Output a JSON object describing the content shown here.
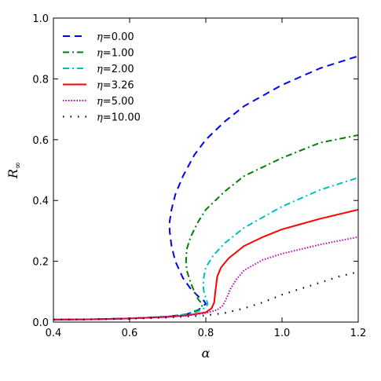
{
  "chart_data": {
    "type": "line",
    "xlabel": "α",
    "ylabel_base": "R",
    "ylabel_sub": "∞",
    "xlim": [
      0.4,
      1.2
    ],
    "ylim": [
      0.0,
      1.0
    ],
    "xticks": [
      0.4,
      0.6,
      0.8,
      1.0,
      1.2
    ],
    "yticks": [
      0.0,
      0.2,
      0.4,
      0.6,
      0.8,
      1.0
    ],
    "xtick_labels": [
      "0.4",
      "0.6",
      "0.8",
      "1.0",
      "1.2"
    ],
    "ytick_labels": [
      "0.0",
      "0.2",
      "0.4",
      "0.6",
      "0.8",
      "1.0"
    ],
    "grid": false,
    "legend_position": "top-left",
    "series": [
      {
        "name": "η=0.00",
        "label_prefix": "η",
        "label_value": "=0.00",
        "color": "#0000ff",
        "dash": "dash",
        "points": [
          [
            0.4,
            0.008
          ],
          [
            0.5,
            0.009
          ],
          [
            0.6,
            0.012
          ],
          [
            0.7,
            0.018
          ],
          [
            0.75,
            0.026
          ],
          [
            0.78,
            0.04
          ],
          [
            0.8,
            0.06
          ],
          [
            0.795,
            0.07
          ],
          [
            0.78,
            0.085
          ],
          [
            0.76,
            0.11
          ],
          [
            0.74,
            0.145
          ],
          [
            0.72,
            0.2
          ],
          [
            0.71,
            0.25
          ],
          [
            0.705,
            0.3
          ],
          [
            0.705,
            0.33
          ],
          [
            0.71,
            0.37
          ],
          [
            0.72,
            0.42
          ],
          [
            0.74,
            0.48
          ],
          [
            0.77,
            0.55
          ],
          [
            0.8,
            0.6
          ],
          [
            0.85,
            0.66
          ],
          [
            0.9,
            0.71
          ],
          [
            1.0,
            0.78
          ],
          [
            1.1,
            0.835
          ],
          [
            1.2,
            0.875
          ]
        ]
      },
      {
        "name": "η=1.00",
        "label_prefix": "η",
        "label_value": "=1.00",
        "color": "#008000",
        "dash": "dashdot",
        "points": [
          [
            0.4,
            0.008
          ],
          [
            0.5,
            0.009
          ],
          [
            0.6,
            0.012
          ],
          [
            0.7,
            0.018
          ],
          [
            0.75,
            0.026
          ],
          [
            0.78,
            0.04
          ],
          [
            0.79,
            0.05
          ],
          [
            0.79,
            0.06
          ],
          [
            0.78,
            0.075
          ],
          [
            0.77,
            0.1
          ],
          [
            0.76,
            0.13
          ],
          [
            0.75,
            0.17
          ],
          [
            0.748,
            0.2
          ],
          [
            0.75,
            0.24
          ],
          [
            0.76,
            0.28
          ],
          [
            0.78,
            0.33
          ],
          [
            0.8,
            0.37
          ],
          [
            0.85,
            0.43
          ],
          [
            0.9,
            0.48
          ],
          [
            1.0,
            0.54
          ],
          [
            1.1,
            0.59
          ],
          [
            1.2,
            0.615
          ]
        ]
      },
      {
        "name": "η=2.00",
        "label_prefix": "η",
        "label_value": "=2.00",
        "color": "#00bfbf",
        "dash": "dashdot",
        "points": [
          [
            0.4,
            0.008
          ],
          [
            0.5,
            0.009
          ],
          [
            0.6,
            0.012
          ],
          [
            0.7,
            0.018
          ],
          [
            0.75,
            0.025
          ],
          [
            0.78,
            0.035
          ],
          [
            0.8,
            0.048
          ],
          [
            0.805,
            0.06
          ],
          [
            0.8,
            0.08
          ],
          [
            0.795,
            0.1
          ],
          [
            0.793,
            0.12
          ],
          [
            0.795,
            0.15
          ],
          [
            0.8,
            0.18
          ],
          [
            0.82,
            0.22
          ],
          [
            0.85,
            0.26
          ],
          [
            0.9,
            0.31
          ],
          [
            1.0,
            0.38
          ],
          [
            1.1,
            0.435
          ],
          [
            1.2,
            0.475
          ]
        ]
      },
      {
        "name": "η=3.26",
        "label_prefix": "η",
        "label_value": "=3.26",
        "color": "#ff0000",
        "dash": "solid",
        "points": [
          [
            0.4,
            0.008
          ],
          [
            0.5,
            0.009
          ],
          [
            0.6,
            0.012
          ],
          [
            0.7,
            0.017
          ],
          [
            0.75,
            0.022
          ],
          [
            0.8,
            0.032
          ],
          [
            0.815,
            0.045
          ],
          [
            0.822,
            0.065
          ],
          [
            0.825,
            0.1
          ],
          [
            0.83,
            0.15
          ],
          [
            0.84,
            0.18
          ],
          [
            0.86,
            0.21
          ],
          [
            0.9,
            0.25
          ],
          [
            0.95,
            0.28
          ],
          [
            1.0,
            0.305
          ],
          [
            1.1,
            0.34
          ],
          [
            1.2,
            0.37
          ]
        ]
      },
      {
        "name": "η=5.00",
        "label_prefix": "η",
        "label_value": "=5.00",
        "color": "#bf00bf",
        "dash": "dotted",
        "points": [
          [
            0.4,
            0.008
          ],
          [
            0.5,
            0.009
          ],
          [
            0.6,
            0.012
          ],
          [
            0.7,
            0.017
          ],
          [
            0.75,
            0.021
          ],
          [
            0.8,
            0.03
          ],
          [
            0.83,
            0.04
          ],
          [
            0.845,
            0.055
          ],
          [
            0.855,
            0.08
          ],
          [
            0.865,
            0.11
          ],
          [
            0.88,
            0.14
          ],
          [
            0.9,
            0.17
          ],
          [
            0.95,
            0.205
          ],
          [
            1.0,
            0.225
          ],
          [
            1.1,
            0.255
          ],
          [
            1.2,
            0.28
          ]
        ]
      },
      {
        "name": "η=10.00",
        "label_prefix": "η",
        "label_value": "=10.00",
        "color": "#000000",
        "dash": "dot-sparse",
        "points": [
          [
            0.4,
            0.008
          ],
          [
            0.5,
            0.009
          ],
          [
            0.6,
            0.011
          ],
          [
            0.7,
            0.015
          ],
          [
            0.8,
            0.022
          ],
          [
            0.85,
            0.03
          ],
          [
            0.9,
            0.045
          ],
          [
            0.95,
            0.065
          ],
          [
            1.0,
            0.09
          ],
          [
            1.05,
            0.11
          ],
          [
            1.1,
            0.13
          ],
          [
            1.15,
            0.15
          ],
          [
            1.2,
            0.165
          ]
        ]
      }
    ]
  }
}
